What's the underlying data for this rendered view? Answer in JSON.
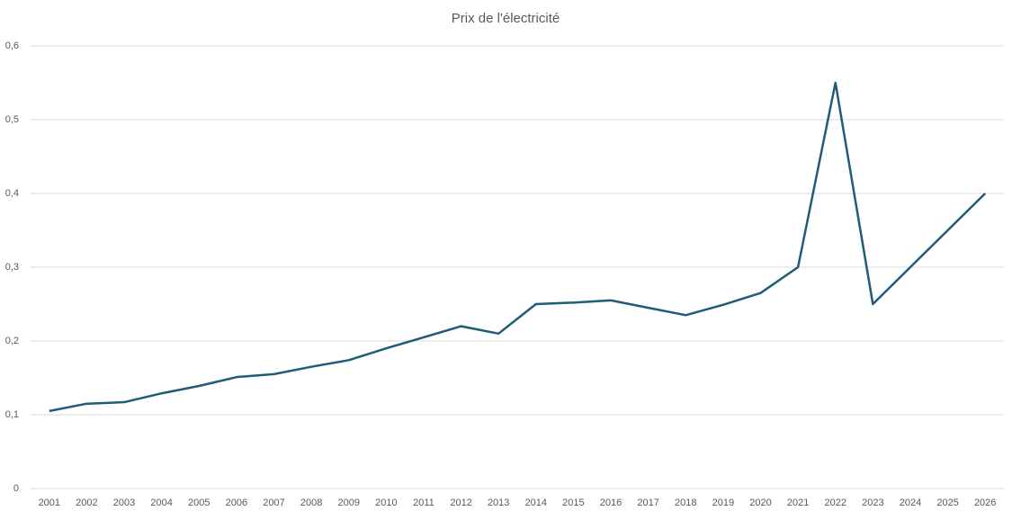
{
  "chart_data": {
    "type": "line",
    "title": "Prix de l'électricité",
    "categories": [
      "2001",
      "2002",
      "2003",
      "2004",
      "2005",
      "2006",
      "2007",
      "2008",
      "2009",
      "2010",
      "2011",
      "2012",
      "2013",
      "2014",
      "2015",
      "2016",
      "2017",
      "2018",
      "2019",
      "2020",
      "2021",
      "2022",
      "2023",
      "2024",
      "2025",
      "2026"
    ],
    "values": [
      0.105,
      0.115,
      0.117,
      0.129,
      0.139,
      0.151,
      0.155,
      0.165,
      0.174,
      0.19,
      0.205,
      0.22,
      0.21,
      0.25,
      0.252,
      0.255,
      0.245,
      0.235,
      0.249,
      0.265,
      0.3,
      0.55,
      0.25,
      0.3,
      0.35,
      0.4
    ],
    "color": "#1f5c78",
    "ylim": [
      0,
      0.6
    ],
    "yticks": [
      0,
      {
        "value": 0.1,
        "label": "0,1"
      },
      {
        "value": 0.2,
        "label": "0,2"
      },
      {
        "value": 0.3,
        "label": "0,3"
      },
      {
        "value": 0.4,
        "label": "0,4"
      },
      {
        "value": 0.5,
        "label": "0,5"
      },
      {
        "value": 0.6,
        "label": "0,6"
      }
    ],
    "grid": true
  }
}
